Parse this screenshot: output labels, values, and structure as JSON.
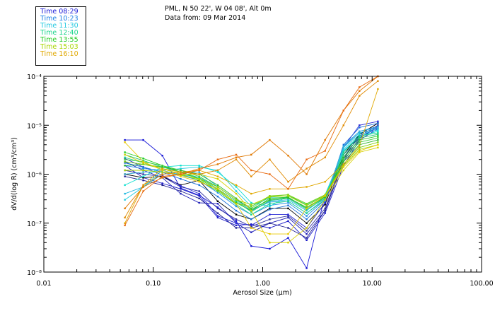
{
  "header": {
    "location": "PML, N 50 22', W 04 08', Alt 0m",
    "date_line": "Data from: 09 Mar 2014"
  },
  "colors": {
    "frame": "#000000",
    "background": "#ffffff"
  },
  "chart_data": {
    "type": "line",
    "xscale": "log",
    "yscale": "log",
    "xlim": [
      0.01,
      100
    ],
    "ylim": [
      1e-08,
      0.0001
    ],
    "xlabel": "Aerosol Size (µm)",
    "ylabel": "dV/d(log R) (cm³/cm³)",
    "xtick_values": [
      0.01,
      0.1,
      1,
      10,
      100
    ],
    "xtick_labels": [
      "0.01",
      "0.10",
      "1.00",
      "10.00",
      "100.00"
    ],
    "ytick_values": [
      1e-08,
      1e-07,
      1e-06,
      1e-05,
      0.0001
    ],
    "ytick_labels": [
      "10⁻⁸",
      "10⁻⁷",
      "10⁻⁶",
      "10⁻⁵",
      "10⁻⁴"
    ],
    "x": [
      0.055,
      0.081,
      0.121,
      0.178,
      0.263,
      0.388,
      0.572,
      0.786,
      1.159,
      1.709,
      2.52,
      3.715,
      5.478,
      7.657,
      11.29
    ],
    "legend": [
      {
        "label": "Time 08:29",
        "color": "#1515d6"
      },
      {
        "label": "Time 10:23",
        "color": "#1a7fe6"
      },
      {
        "label": "Time 11:30",
        "color": "#1fc8e0"
      },
      {
        "label": "Time 12:40",
        "color": "#19d48a"
      },
      {
        "label": "Time 13:55",
        "color": "#22cc22"
      },
      {
        "label": "Time 15:03",
        "color": "#a8d600"
      },
      {
        "label": "Time 16:10",
        "color": "#e0a800"
      }
    ],
    "series": [
      {
        "name": "blue-1",
        "color": "#1515d6",
        "values": [
          5e-06,
          5e-06,
          2.4e-06,
          5.2e-07,
          3.7e-07,
          2.1e-07,
          1.1e-07,
          3.4e-08,
          3e-08,
          5e-08,
          1.2e-08,
          3.6e-07,
          3e-06,
          5.5e-06,
          9e-06
        ]
      },
      {
        "name": "blue-2",
        "color": "#1a1ac8",
        "values": [
          1.5e-06,
          8.5e-07,
          6.5e-07,
          5e-07,
          3.6e-07,
          1.3e-07,
          9e-08,
          9.5e-08,
          8e-08,
          1.1e-07,
          4.5e-08,
          1.6e-07,
          1.5e-06,
          5e-06,
          8.5e-06
        ]
      },
      {
        "name": "blue-3",
        "color": "#2020b8",
        "values": [
          1.8e-06,
          1.2e-06,
          8.5e-07,
          4e-07,
          2.6e-07,
          2.5e-07,
          1e-07,
          6.5e-08,
          1e-07,
          1.3e-07,
          6e-08,
          1.8e-07,
          1.8e-06,
          5.5e-06,
          9.5e-06
        ]
      },
      {
        "name": "blue-4",
        "color": "#3030a0",
        "values": [
          1.2e-06,
          1e-06,
          9e-07,
          5.5e-07,
          4.5e-07,
          2e-07,
          1.2e-07,
          8.5e-08,
          1.2e-07,
          1.4e-07,
          7e-08,
          2e-07,
          2.2e-06,
          6e-06,
          1e-05
        ]
      },
      {
        "name": "navy-1",
        "color": "#202090",
        "values": [
          9e-07,
          7.5e-07,
          6e-07,
          4.5e-07,
          3.2e-07,
          1.6e-07,
          8e-08,
          8e-08,
          1e-07,
          8e-08,
          5e-08,
          1.8e-07,
          2e-06,
          6.5e-06,
          1.1e-05
        ]
      },
      {
        "name": "black-1",
        "color": "#000000",
        "values": [
          1e-06,
          8.5e-07,
          9e-07,
          6e-07,
          7.5e-07,
          2.8e-07,
          1.5e-07,
          1.2e-07,
          2e-07,
          2e-07,
          1e-07,
          2.4e-07,
          2.5e-06,
          6.5e-06,
          1.1e-05
        ]
      },
      {
        "name": "blue-5",
        "color": "#2a2ad6",
        "values": [
          2.1e-06,
          1.4e-06,
          9.5e-07,
          5.8e-07,
          4e-07,
          1.4e-07,
          1e-07,
          9e-08,
          1.5e-07,
          1.5e-07,
          8e-08,
          2.6e-07,
          3.5e-06,
          1e-05,
          1.2e-05
        ]
      },
      {
        "name": "blue-6",
        "color": "#1a70d8",
        "values": [
          1.7e-06,
          1.4e-06,
          1.1e-06,
          8e-07,
          6e-07,
          3.5e-07,
          1.8e-07,
          1.2e-07,
          1.9e-07,
          2.3e-07,
          1.2e-07,
          2.8e-07,
          4e-06,
          9e-06,
          1.1e-05
        ]
      },
      {
        "name": "blue-7",
        "color": "#1e90e6",
        "values": [
          1.5e-06,
          1.3e-06,
          1.2e-06,
          9.5e-07,
          7.5e-07,
          4.2e-07,
          2.2e-07,
          1.5e-07,
          2.3e-07,
          2.6e-07,
          1.4e-07,
          3e-07,
          3.8e-06,
          7.5e-06,
          9.5e-06
        ]
      },
      {
        "name": "cyan-1",
        "color": "#1fb8e0",
        "values": [
          4e-07,
          5.5e-07,
          1e-06,
          1.1e-06,
          1.1e-06,
          5.5e-07,
          3e-07,
          1.8e-07,
          2.8e-07,
          3e-07,
          1.8e-07,
          3.4e-07,
          3.5e-06,
          7e-06,
          8.5e-06
        ]
      },
      {
        "name": "cyan-2",
        "color": "#22ccdd",
        "values": [
          3e-07,
          5.5e-07,
          1.2e-06,
          1.3e-06,
          1.4e-06,
          1.2e-06,
          4.5e-07,
          2.2e-07,
          3.3e-07,
          3.3e-07,
          2e-07,
          3.6e-07,
          3.2e-06,
          6.5e-06,
          8e-06
        ]
      },
      {
        "name": "cyan-3",
        "color": "#10e0d0",
        "values": [
          6e-07,
          9e-07,
          1.4e-06,
          1.5e-06,
          1.5e-06,
          1.1e-06,
          5.5e-07,
          2.6e-07,
          2.2e-07,
          3.6e-07,
          2.4e-07,
          3.8e-07,
          3e-06,
          6e-06,
          7.5e-06
        ]
      },
      {
        "name": "cyan-4",
        "color": "#3ab0d8",
        "values": [
          1e-06,
          1.1e-06,
          1.1e-06,
          1e-06,
          8.5e-07,
          5.5e-07,
          3e-07,
          1.8e-07,
          2.7e-07,
          2.8e-07,
          1.6e-07,
          3.2e-07,
          3.6e-06,
          7.5e-06,
          9e-06
        ]
      },
      {
        "name": "teal-1",
        "color": "#19d48a",
        "values": [
          2.2e-06,
          1.7e-06,
          1.3e-06,
          1e-06,
          7.5e-07,
          4.5e-07,
          2.4e-07,
          1.5e-07,
          2.5e-07,
          2.8e-07,
          1.6e-07,
          3e-07,
          2.8e-06,
          6e-06,
          7e-06
        ]
      },
      {
        "name": "teal-2",
        "color": "#20c878",
        "values": [
          2.5e-06,
          1.9e-06,
          1.4e-06,
          1.1e-06,
          8.5e-07,
          5e-07,
          2.8e-07,
          1.7e-07,
          2.9e-07,
          3.2e-07,
          1.9e-07,
          3.2e-07,
          2.5e-06,
          5.5e-06,
          6.5e-06
        ]
      },
      {
        "name": "green-1",
        "color": "#22cc22",
        "values": [
          2.8e-06,
          2.1e-06,
          1.5e-06,
          1.1e-06,
          8e-07,
          4.8e-07,
          2.6e-07,
          1.8e-07,
          3.2e-07,
          3.4e-07,
          2e-07,
          3.4e-07,
          2.2e-06,
          5e-06,
          6e-06
        ]
      },
      {
        "name": "green-2",
        "color": "#40d040",
        "values": [
          2e-06,
          1.8e-06,
          1.5e-06,
          1.2e-06,
          9e-07,
          5.5e-07,
          3e-07,
          2e-07,
          3.5e-07,
          3.8e-07,
          2.3e-07,
          3.6e-07,
          2e-06,
          4.5e-06,
          5.5e-06
        ]
      },
      {
        "name": "green-3",
        "color": "#30b830",
        "values": [
          1.5e-06,
          1.6e-06,
          1.4e-06,
          1.2e-06,
          1e-06,
          6e-07,
          3.2e-07,
          1.9e-07,
          3e-07,
          3.3e-07,
          2.1e-07,
          3.5e-07,
          1.8e-06,
          4e-06,
          5e-06
        ]
      },
      {
        "name": "lime-1",
        "color": "#80d010",
        "values": [
          1.8e-06,
          1.6e-06,
          1.3e-06,
          1e-06,
          7.5e-07,
          4.5e-07,
          2.5e-07,
          2.2e-07,
          3.6e-07,
          3.8e-07,
          2.5e-07,
          3.8e-07,
          1.6e-06,
          3.5e-06,
          4.5e-06
        ]
      },
      {
        "name": "lime-2",
        "color": "#a8d600",
        "values": [
          1.2e-06,
          1.2e-06,
          1.1e-06,
          9.5e-07,
          8e-07,
          5.5e-07,
          3e-07,
          2.4e-07,
          3.4e-07,
          3.6e-07,
          2.3e-07,
          3.7e-07,
          1.5e-06,
          3.2e-06,
          4e-06
        ]
      },
      {
        "name": "yellow-1",
        "color": "#d8d000",
        "values": [
          2.5e-06,
          1.7e-06,
          1.3e-06,
          1e-06,
          1e-06,
          8e-07,
          4e-07,
          1.8e-07,
          4e-08,
          4e-08,
          8e-08,
          3e-07,
          1.2e-06,
          2.8e-06,
          3.5e-06
        ]
      },
      {
        "name": "yellow-2",
        "color": "#e8c800",
        "values": [
          4.5e-06,
          1.8e-06,
          1.2e-06,
          9e-07,
          7e-07,
          5e-07,
          2.5e-07,
          8e-08,
          6e-08,
          6e-08,
          2e-07,
          3.6e-07,
          1.4e-06,
          3e-06,
          4e-06
        ]
      },
      {
        "name": "orange-1",
        "color": "#e0a800",
        "values": [
          1e-07,
          6e-07,
          1.3e-06,
          1.1e-06,
          1.2e-06,
          9e-07,
          6e-07,
          4e-07,
          5e-07,
          5e-07,
          5.5e-07,
          7e-07,
          1.6e-06,
          3.8e-06,
          5.5e-05
        ]
      },
      {
        "name": "orange-2",
        "color": "#e08a00",
        "values": [
          1.3e-07,
          6e-07,
          1e-06,
          1.1e-06,
          1e-06,
          1.2e-06,
          2e-06,
          9e-07,
          2e-06,
          7e-07,
          1.3e-06,
          2.2e-06,
          1e-05,
          4e-05,
          8e-05
        ]
      },
      {
        "name": "orange-3",
        "color": "#e07800",
        "values": [
          2e-07,
          5.5e-07,
          8.5e-07,
          1e-06,
          1.3e-06,
          1.6e-06,
          2.2e-06,
          2.5e-06,
          5e-06,
          2.4e-06,
          1e-06,
          5e-06,
          2e-05,
          5e-05,
          0.0001
        ]
      },
      {
        "name": "orange-4",
        "color": "#e86a10",
        "values": [
          9e-08,
          4.5e-07,
          9e-07,
          1e-06,
          1.2e-06,
          2e-06,
          2.5e-06,
          1.2e-06,
          1e-06,
          5e-07,
          2e-06,
          3e-06,
          2e-05,
          6e-05,
          0.0001
        ]
      }
    ]
  }
}
